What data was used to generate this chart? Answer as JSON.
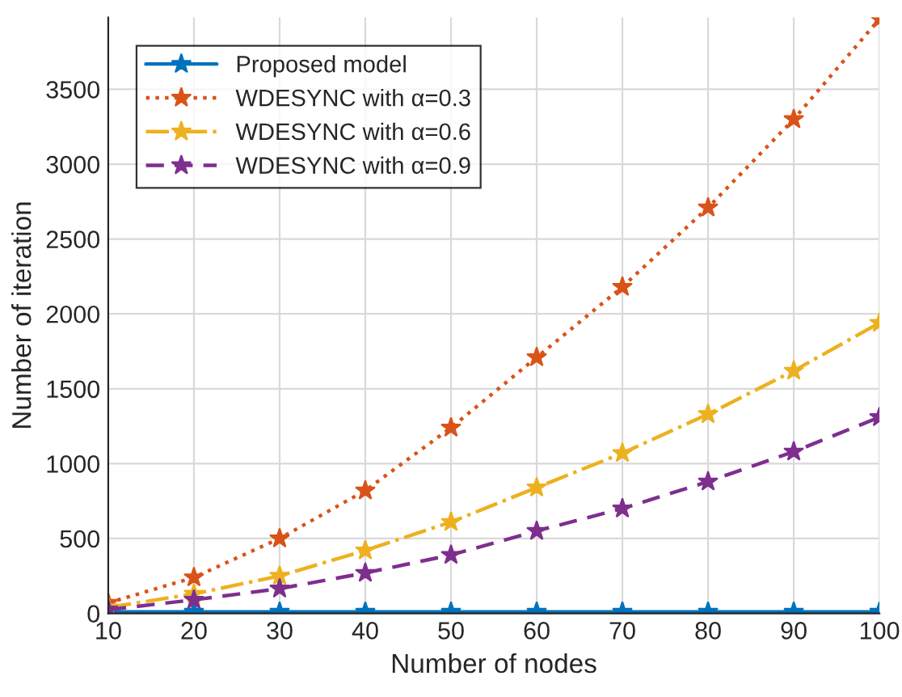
{
  "chart_data": {
    "type": "line",
    "xlabel": "Number of nodes",
    "ylabel": "Number of iteration",
    "x": [
      10,
      20,
      30,
      40,
      50,
      60,
      70,
      80,
      90,
      100
    ],
    "series": [
      {
        "name": "Proposed model",
        "color": "#0072bd",
        "line_style": "solid",
        "values": [
          10,
          10,
          10,
          10,
          10,
          10,
          10,
          10,
          10,
          10
        ]
      },
      {
        "name": "WDESYNC with α=0.3",
        "color": "#d95319",
        "line_style": "dotted",
        "values": [
          70,
          240,
          500,
          820,
          1240,
          1710,
          2180,
          2710,
          3300,
          3970
        ]
      },
      {
        "name": "WDESYNC with α=0.6",
        "color": "#edb120",
        "line_style": "dashdot",
        "values": [
          40,
          130,
          250,
          420,
          610,
          840,
          1070,
          1330,
          1620,
          1940
        ]
      },
      {
        "name": "WDESYNC with α=0.9",
        "color": "#7e2f8e",
        "line_style": "dashed",
        "values": [
          25,
          90,
          165,
          270,
          390,
          550,
          700,
          880,
          1080,
          1310
        ]
      }
    ],
    "xlim": [
      10,
      100
    ],
    "xticks": [
      10,
      20,
      30,
      40,
      50,
      60,
      70,
      80,
      90,
      100
    ],
    "ylim": [
      0,
      3980
    ],
    "yticks": [
      0,
      500,
      1000,
      1500,
      2000,
      2500,
      3000,
      3500
    ],
    "grid": true,
    "legend": "top left",
    "marker": "star"
  }
}
